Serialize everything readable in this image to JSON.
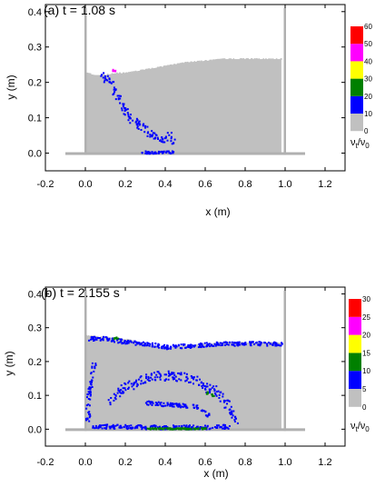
{
  "chart_data": [
    {
      "type": "scatter",
      "title": "(a) t = 1.08 s",
      "xlabel": "x (m)",
      "ylabel": "y (m)",
      "xlim": [
        -0.2,
        1.3
      ],
      "ylim": [
        -0.05,
        0.42
      ],
      "xticks": [
        "-0.2",
        "0.0",
        "0.2",
        "0.4",
        "0.6",
        "0.8",
        "1.0",
        "1.2"
      ],
      "yticks": [
        "0.0",
        "0.1",
        "0.2",
        "0.3",
        "0.4"
      ],
      "colorbar": {
        "label_main": "ν",
        "label_sub1": "t",
        "label_slash": "/ν",
        "label_sub2": "0",
        "ticks": [
          "0",
          "10",
          "20",
          "30",
          "40",
          "50",
          "60"
        ],
        "colors": [
          "#c0c0c0",
          "#0000ff",
          "#008000",
          "#ffff00",
          "#ff00ff",
          "#ff0000"
        ]
      },
      "tank": {
        "floor_y": 0.0,
        "floor_x": [
          -0.1,
          1.1
        ],
        "left_wall_x": 0.0,
        "right_wall_x": 1.0,
        "wall_top": 0.41
      },
      "free_surface": {
        "x": [
          0.0,
          0.05,
          0.1,
          0.15,
          0.2,
          0.3,
          0.4,
          0.5,
          0.6,
          0.7,
          0.8,
          0.9,
          0.95,
          0.98
        ],
        "y": [
          0.225,
          0.22,
          0.22,
          0.225,
          0.225,
          0.235,
          0.245,
          0.255,
          0.26,
          0.265,
          0.265,
          0.265,
          0.265,
          0.265
        ]
      },
      "clusters": [
        {
          "color": "#0000ff",
          "path": [
            [
              0.08,
              0.22
            ],
            [
              0.13,
              0.2
            ],
            [
              0.15,
              0.17
            ],
            [
              0.19,
              0.13
            ],
            [
              0.22,
              0.1
            ],
            [
              0.26,
              0.085
            ],
            [
              0.3,
              0.07
            ],
            [
              0.34,
              0.05
            ],
            [
              0.37,
              0.04
            ],
            [
              0.42,
              0.05
            ],
            [
              0.44,
              0.04
            ]
          ],
          "spread": 0.012
        },
        {
          "color": "#0000ff",
          "path": [
            [
              0.28,
              0.005
            ],
            [
              0.33,
              0.003
            ],
            [
              0.38,
              0.004
            ],
            [
              0.44,
              0.004
            ]
          ],
          "spread": 0.004
        },
        {
          "color": "#ff00ff",
          "path": [
            [
              0.13,
              0.237
            ],
            [
              0.145,
              0.233
            ]
          ],
          "spread": 0.004
        }
      ]
    },
    {
      "type": "scatter",
      "title": "(b) t = 2.155 s",
      "xlabel": "x (m)",
      "ylabel": "y (m)",
      "xlim": [
        -0.2,
        1.3
      ],
      "ylim": [
        -0.05,
        0.42
      ],
      "xticks": [
        "-0.2",
        "0.0",
        "0.2",
        "0.4",
        "0.6",
        "0.8",
        "1.0",
        "1.2"
      ],
      "yticks": [
        "0.0",
        "0.1",
        "0.2",
        "0.3",
        "0.4"
      ],
      "colorbar": {
        "label_main": "ν",
        "label_sub1": "t",
        "label_slash": "/ν",
        "label_sub2": "0",
        "ticks": [
          "0",
          "5",
          "10",
          "15",
          "20",
          "25",
          "30"
        ],
        "colors": [
          "#c0c0c0",
          "#0000ff",
          "#008000",
          "#ffff00",
          "#ff00ff",
          "#ff0000"
        ]
      },
      "tank": {
        "floor_y": 0.0,
        "floor_x": [
          -0.1,
          1.1
        ],
        "left_wall_x": 0.0,
        "right_wall_x": 1.0,
        "wall_top": 0.41
      },
      "free_surface": {
        "x": [
          0.0,
          0.1,
          0.2,
          0.3,
          0.4,
          0.5,
          0.6,
          0.7,
          0.8,
          0.9,
          0.98
        ],
        "y": [
          0.275,
          0.27,
          0.265,
          0.25,
          0.24,
          0.245,
          0.25,
          0.255,
          0.255,
          0.255,
          0.255
        ]
      },
      "clusters": [
        {
          "color": "#0000ff",
          "path": [
            [
              0.02,
              0.27
            ],
            [
              0.1,
              0.27
            ],
            [
              0.2,
              0.26
            ],
            [
              0.3,
              0.255
            ],
            [
              0.4,
              0.245
            ],
            [
              0.55,
              0.25
            ],
            [
              0.7,
              0.255
            ],
            [
              0.85,
              0.255
            ],
            [
              0.98,
              0.255
            ]
          ],
          "spread": 0.006
        },
        {
          "color": "#0000ff",
          "path": [
            [
              0.01,
              0.02
            ],
            [
              0.01,
              0.07
            ],
            [
              0.02,
              0.12
            ],
            [
              0.03,
              0.17
            ],
            [
              0.04,
              0.2
            ]
          ],
          "spread": 0.01
        },
        {
          "color": "#0000ff",
          "path": [
            [
              0.12,
              0.08
            ],
            [
              0.18,
              0.12
            ],
            [
              0.26,
              0.145
            ],
            [
              0.35,
              0.16
            ],
            [
              0.45,
              0.16
            ],
            [
              0.55,
              0.145
            ],
            [
              0.63,
              0.12
            ],
            [
              0.69,
              0.09
            ],
            [
              0.73,
              0.05
            ],
            [
              0.75,
              0.02
            ]
          ],
          "spread": 0.014
        },
        {
          "color": "#0000ff",
          "path": [
            [
              0.02,
              0.01
            ],
            [
              0.15,
              0.01
            ],
            [
              0.3,
              0.008
            ],
            [
              0.45,
              0.008
            ],
            [
              0.6,
              0.008
            ],
            [
              0.72,
              0.01
            ]
          ],
          "spread": 0.006
        },
        {
          "color": "#0000ff",
          "path": [
            [
              0.3,
              0.08
            ],
            [
              0.4,
              0.075
            ],
            [
              0.55,
              0.07
            ],
            [
              0.62,
              0.04
            ]
          ],
          "spread": 0.006
        },
        {
          "color": "#008000",
          "path": [
            [
              0.14,
              0.272
            ],
            [
              0.16,
              0.27
            ]
          ],
          "spread": 0.003
        },
        {
          "color": "#008000",
          "path": [
            [
              0.6,
              0.11
            ],
            [
              0.64,
              0.1
            ]
          ],
          "spread": 0.004
        },
        {
          "color": "#008000",
          "path": [
            [
              0.3,
              0.004
            ],
            [
              0.6,
              0.004
            ]
          ],
          "spread": 0.002
        }
      ]
    }
  ]
}
